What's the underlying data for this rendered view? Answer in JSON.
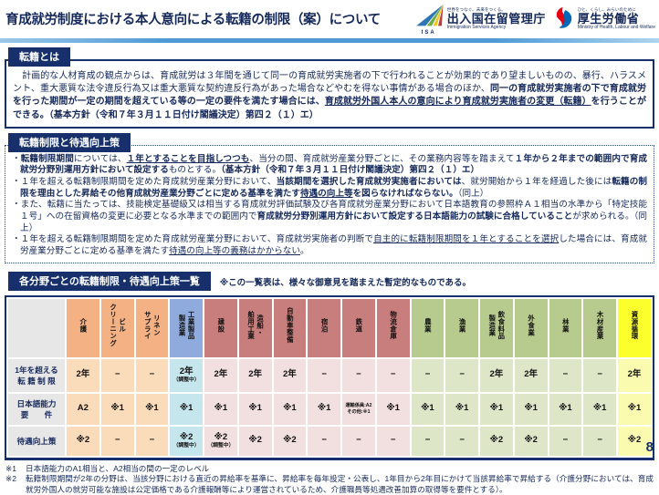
{
  "header": {
    "title": "育成就労制度における本人意向による転籍の制限（案）について",
    "isa": {
      "logo_text": "ISA",
      "tagline": "世界をつなぐ、未来をつくる。",
      "name": "出入国在留管理庁",
      "name_en": "Immigration Services Agency"
    },
    "mhlw": {
      "tagline": "ひと、くらし、みらいのために",
      "name": "厚生労働省",
      "name_en": "Ministry of Health, Labour and Welfare"
    }
  },
  "section1": {
    "heading": "転籍とは",
    "segments": [
      {
        "t": "　計画的な人材育成の観点からは、育成就労は３年間を通じて同一の育成就労実施者の下で行われることが効果的であり望ましいものの、暴行、ハラスメント、重大悪質な法令違反行為又は重大悪質な契約違反行為があった場合などやむを得ない事情がある場合のほか、"
      },
      {
        "t": "同一の育成就労実施者の下で育成就労を行った期間が一定の期間を超えている等の一定の要件を満たす場合には、",
        "b": true
      },
      {
        "t": "育成就労外国人本人の意向により育成就労実施者の変更（転籍）",
        "b": true,
        "u": true
      },
      {
        "t": "を行うことができる。（基本方針（令和７年３月１１日付け閣議決定）第四２（１）エ）",
        "b": true
      }
    ]
  },
  "section2": {
    "heading": "転籍制限と待遇向上策",
    "bullets": [
      {
        "segments": [
          {
            "t": "・"
          },
          {
            "t": "転籍制限期間",
            "b": true
          },
          {
            "t": "については、"
          },
          {
            "t": "１年とすることを目指しつつも",
            "b": true,
            "u": true
          },
          {
            "t": "、当分の間、育成就労産業分野ごとに、その業務内容等を踏まえて"
          },
          {
            "t": "１年から２年までの範囲内で育成就労分野別運用方針において設定する",
            "b": true
          },
          {
            "t": "ものとする。"
          },
          {
            "t": "（基本方針（令和７年３月１１日付け閣議決定）第四２（１）エ）",
            "b": true
          }
        ]
      },
      {
        "segments": [
          {
            "t": "・１年を超える転籍制限期間を定めた育成就労産業分野において、"
          },
          {
            "t": "当該期間を選択した育成就労実施者においては",
            "b": true
          },
          {
            "t": "、就労開始から１年を経過した後には"
          },
          {
            "t": "転籍の制限を理由とした昇給その他育成就労産業分野ごとに定める基準を満たす",
            "b": true
          },
          {
            "t": "待遇の向上等",
            "b": true,
            "u": true
          },
          {
            "t": "を図らなければならない。",
            "b": true
          },
          {
            "t": "（同上）"
          }
        ]
      },
      {
        "segments": [
          {
            "t": "・また、転籍に当たっては、技能検定基礎級又は相当する育成就労評価試験及び各育成就労産業分野において日本語教育の参照枠Ａ１相当の水準から「特定技能１号」への在留資格の変更に必要となる水準までの範囲内で"
          },
          {
            "t": "育成就労分野別運用方針において設定する日本語能力の試験に合格していること",
            "b": true
          },
          {
            "t": "が求められる。"
          },
          {
            "t": "（同上）"
          }
        ]
      },
      {
        "segments": [
          {
            "t": "・１年を超える転籍制限期間を定めた育成就労産業分野において、育成就労実施者の判断で"
          },
          {
            "t": "自主的に転籍制限期間を１年とすることを選択",
            "u": true
          },
          {
            "t": "した場合には、育成就労産業分野ごとに定める基準を満たす"
          },
          {
            "t": "待遇の向上等の義務はかからない",
            "u": true
          },
          {
            "t": "。"
          }
        ]
      }
    ]
  },
  "table_section": {
    "heading": "各分野ごとの転籍制限・待遇向上策一覧",
    "note": "※この一覧表は、様々な御意見を踏まえた暫定的なものである。",
    "rows": [
      {
        "label": "1年を超える\n転 籍 制 限"
      },
      {
        "label": "日本語能力\n要　　件"
      },
      {
        "label": "待遇向上策"
      }
    ],
    "columns": [
      {
        "name": "介護",
        "group": "orange",
        "cells": [
          "2年",
          "A2",
          "※2"
        ]
      },
      {
        "name": "ビル\nクリーニング",
        "group": "orange",
        "cells": [
          "−",
          "※1",
          "−"
        ]
      },
      {
        "name": "リネン\nサプライ",
        "group": "orange",
        "cells": [
          "−",
          "※1",
          "−"
        ]
      },
      {
        "name": "工業製品\n製造業",
        "group": "blue",
        "cells": [
          "2年",
          "※1",
          "※2"
        ],
        "notes": {
          "0": "（調整中）",
          "2": "（調整中）"
        }
      },
      {
        "name": "建設",
        "group": "red",
        "cells": [
          "2年",
          "※1",
          "※2"
        ],
        "notes": {
          "2": "（調整中）"
        }
      },
      {
        "name": "造船・\n舶用工業",
        "group": "red",
        "cells": [
          "2年",
          "※1",
          "※2"
        ]
      },
      {
        "name": "自動車整備",
        "group": "red",
        "cells": [
          "2年",
          "※1",
          "※2"
        ]
      },
      {
        "name": "宿泊",
        "group": "red",
        "cells": [
          "−",
          "※1",
          "−"
        ]
      },
      {
        "name": "鉄道",
        "group": "red",
        "cells": [
          "−",
          "運輸係員:A2\nその他:※1",
          "−"
        ]
      },
      {
        "name": "物流倉庫",
        "group": "red",
        "cells": [
          "−",
          "※1",
          "−"
        ]
      },
      {
        "name": "農業",
        "group": "green",
        "cells": [
          "−",
          "※1",
          "−"
        ]
      },
      {
        "name": "漁業",
        "group": "green",
        "cells": [
          "−",
          "※1",
          "−"
        ]
      },
      {
        "name": "飲食料品\n製造業",
        "group": "green",
        "cells": [
          "2年",
          "※1",
          "※2"
        ]
      },
      {
        "name": "外食業",
        "group": "green",
        "cells": [
          "2年",
          "※1",
          "※2"
        ]
      },
      {
        "name": "林業",
        "group": "green",
        "cells": [
          "−",
          "※1",
          "−"
        ]
      },
      {
        "name": "木材産業",
        "group": "green",
        "cells": [
          "−",
          "※1",
          "−"
        ]
      },
      {
        "name": "資源循環",
        "group": "yellow",
        "cells": [
          "2年",
          "※1",
          "※2"
        ]
      }
    ]
  },
  "footnotes": [
    {
      "marker": "※1",
      "text": "日本語能力のA1相当と、A2相当の間の一定のレベル"
    },
    {
      "marker": "※2",
      "text": "転籍制限期間が2年の分野は、当該分野における直近の昇給率を基準に、昇給率を毎年設定・公表し、1年目から2年目にかけて当該昇給率で昇給する（介護分野においては、育成就労外国人の就労可能な施設は公定価格である介護報酬等により運営されているため、介護職員等処遇改善加算の取得等を要件とする）。"
    }
  ],
  "page_number": "8",
  "colors": {
    "navy": "#17306B",
    "bar_blue": "#4F9AD5",
    "label_gray": "#E8E7E7",
    "orange_header": "#F4B183",
    "orange_cell": "#FBDCBA",
    "blue_header": "#8FAADC",
    "blue_cell": "#C6E6EE",
    "red_header": "#C97E7E",
    "red_cell": "#F2DFDF",
    "green_header": "#B8CB8F",
    "green_cell": "#DDE7C8",
    "yellow_header": "#FBFF2B",
    "yellow_cell": "#FBFBAF"
  }
}
